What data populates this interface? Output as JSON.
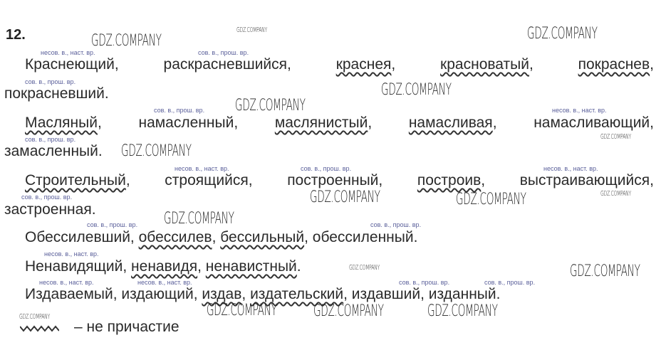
{
  "exercise_number": "12.",
  "lines": [
    {
      "words": [
        "Краснеющий,",
        "раскрасневшийся,",
        "краснея",
        ", ",
        "красноватый",
        ",",
        "покраснев",
        ","
      ]
    },
    {
      "words": [
        "покрасневший."
      ]
    }
  ],
  "l1": {
    "w1": "Краснеющий,",
    "w2": "раскрасневшийся,",
    "w3": "краснея",
    "w4": "красноватый",
    "w5": "покраснев",
    "c": ","
  },
  "l2": {
    "w1": "покрасневший."
  },
  "l3": {
    "w1": "Масляный",
    "w2": "намасленный,",
    "w3": "маслянистый",
    "w4": "намасливая",
    "w5": "намасливающий,",
    "c": ","
  },
  "l4": {
    "w1": "замасленный."
  },
  "l5": {
    "w1": "Строительный",
    "w2": "строящийся,",
    "w3": "построенный,",
    "w4": "построив",
    "w5": "выстраивающийся,",
    "c": ","
  },
  "l6": {
    "w1": "застроенная."
  },
  "l7": {
    "w1": "Обессилевший, ",
    "w2": "обессилев",
    "w3": "бессильный",
    "w4": ", обессиленный.",
    "c": ", "
  },
  "l8": {
    "w1": "Ненавидящий, ",
    "w2": "ненавидя",
    "w3": "ненавистный",
    "c": ", ",
    "end": "."
  },
  "l9": {
    "w1": "Издаваемый, издающий, ",
    "w2": "издав",
    "w3": "издательский",
    "w4": ", издавший, изданный.",
    "c": ", "
  },
  "legend": {
    "text": "– не причастие"
  },
  "annotations": {
    "imperf_present": "несов. в., наст. вр.",
    "perf_past": "сов. в., прош. вр."
  },
  "watermark": "GDZ.COMPANY"
}
